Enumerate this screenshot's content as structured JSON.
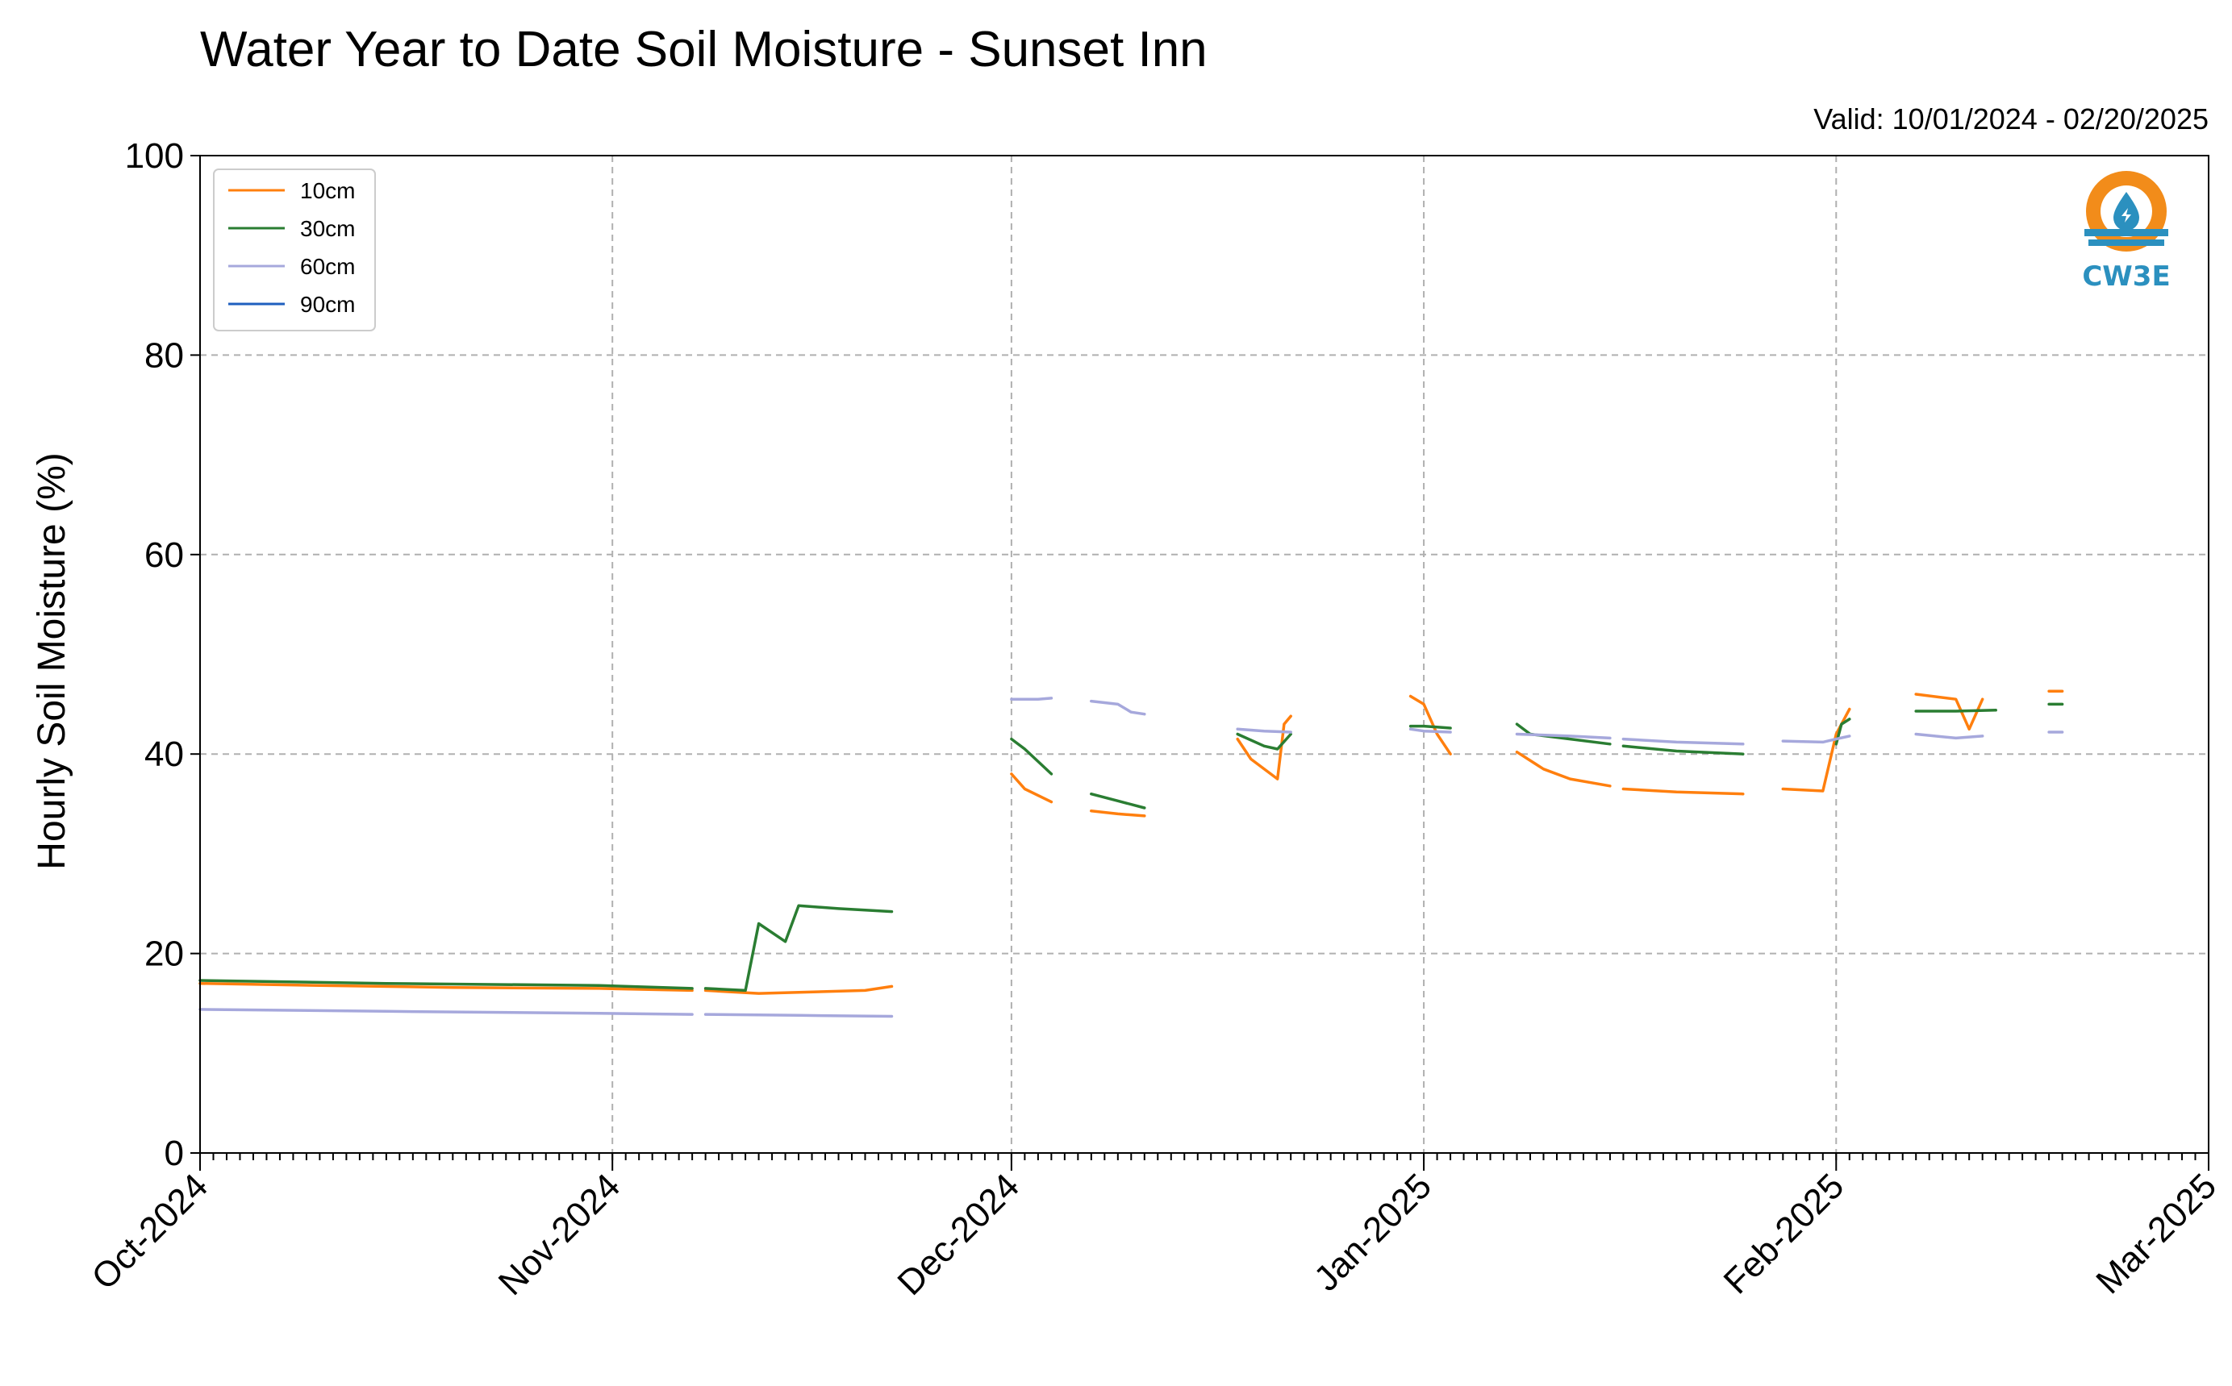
{
  "chart_data": {
    "type": "line",
    "title": "Water Year to Date Soil Moisture - Sunset Inn",
    "subtitle": "Valid: 10/01/2024 - 02/20/2025",
    "ylabel": "Hourly Soil Moisture (%)",
    "xlabel": "",
    "ylim": [
      0,
      100
    ],
    "yticks": [
      0,
      20,
      40,
      60,
      80,
      100
    ],
    "xlim": [
      "2024-10-01",
      "2025-03-01"
    ],
    "xticks": [
      {
        "date": "2024-10-01",
        "label": "Oct-2024"
      },
      {
        "date": "2024-11-01",
        "label": "Nov-2024"
      },
      {
        "date": "2024-12-01",
        "label": "Dec-2024"
      },
      {
        "date": "2025-01-01",
        "label": "Jan-2025"
      },
      {
        "date": "2025-02-01",
        "label": "Feb-2025"
      },
      {
        "date": "2025-03-01",
        "label": "Mar-2025"
      }
    ],
    "grid": true,
    "legend_position": "top-left",
    "series": [
      {
        "name": "10cm",
        "color": "#ff7f0e",
        "segments": [
          [
            [
              "2024-10-01",
              17.0
            ],
            [
              "2024-10-10",
              16.8
            ],
            [
              "2024-10-20",
              16.6
            ],
            [
              "2024-10-31",
              16.5
            ],
            [
              "2024-11-07",
              16.3
            ]
          ],
          [
            [
              "2024-11-08",
              16.3
            ],
            [
              "2024-11-12",
              16.0
            ],
            [
              "2024-11-15",
              16.1
            ],
            [
              "2024-11-20",
              16.3
            ],
            [
              "2024-11-22",
              16.7
            ]
          ],
          [
            [
              "2024-12-01",
              38.0
            ],
            [
              "2024-12-02",
              36.5
            ],
            [
              "2024-12-04",
              35.2
            ]
          ],
          [
            [
              "2024-12-07",
              34.3
            ],
            [
              "2024-12-09",
              34.0
            ],
            [
              "2024-12-11",
              33.8
            ]
          ],
          [
            [
              "2024-12-18",
              41.5
            ],
            [
              "2024-12-19",
              39.5
            ],
            [
              "2024-12-21",
              37.5
            ],
            [
              "2024-12-21.5",
              43.0
            ],
            [
              "2024-12-22",
              43.8
            ]
          ],
          [
            [
              "2024-12-31",
              45.8
            ],
            [
              "2025-01-01",
              45.0
            ],
            [
              "2025-01-02",
              42.0
            ],
            [
              "2025-01-03",
              40.0
            ]
          ],
          [
            [
              "2025-01-08",
              40.2
            ],
            [
              "2025-01-10",
              38.5
            ],
            [
              "2025-01-12",
              37.5
            ],
            [
              "2025-01-15",
              36.8
            ]
          ],
          [
            [
              "2025-01-16",
              36.5
            ],
            [
              "2025-01-20",
              36.2
            ],
            [
              "2025-01-25",
              36.0
            ]
          ],
          [
            [
              "2025-01-28",
              36.5
            ],
            [
              "2025-01-31",
              36.3
            ],
            [
              "2025-02-01",
              42.0
            ],
            [
              "2025-02-02",
              44.5
            ]
          ],
          [
            [
              "2025-02-07",
              46.0
            ],
            [
              "2025-02-10",
              45.5
            ],
            [
              "2025-02-11",
              42.5
            ],
            [
              "2025-02-12",
              45.5
            ]
          ],
          [
            [
              "2025-02-17",
              46.3
            ],
            [
              "2025-02-18",
              46.3
            ]
          ]
        ]
      },
      {
        "name": "30cm",
        "color": "#2a7d32",
        "segments": [
          [
            [
              "2024-10-01",
              17.3
            ],
            [
              "2024-10-15",
              17.0
            ],
            [
              "2024-10-31",
              16.8
            ],
            [
              "2024-11-07",
              16.5
            ]
          ],
          [
            [
              "2024-11-08",
              16.5
            ],
            [
              "2024-11-11",
              16.3
            ],
            [
              "2024-11-12",
              23.0
            ],
            [
              "2024-11-14",
              21.2
            ],
            [
              "2024-11-15",
              24.8
            ],
            [
              "2024-11-18",
              24.5
            ],
            [
              "2024-11-22",
              24.2
            ]
          ],
          [
            [
              "2024-12-01",
              41.5
            ],
            [
              "2024-12-02",
              40.5
            ],
            [
              "2024-12-04",
              38.0
            ]
          ],
          [
            [
              "2024-12-07",
              36.0
            ],
            [
              "2024-12-09",
              35.3
            ],
            [
              "2024-12-11",
              34.6
            ]
          ],
          [
            [
              "2024-12-18",
              42.0
            ],
            [
              "2024-12-20",
              40.8
            ],
            [
              "2024-12-21",
              40.5
            ],
            [
              "2024-12-22",
              42.0
            ]
          ],
          [
            [
              "2024-12-31",
              42.8
            ],
            [
              "2025-01-01",
              42.8
            ],
            [
              "2025-01-03",
              42.6
            ]
          ],
          [
            [
              "2025-01-08",
              43.0
            ],
            [
              "2025-01-09",
              42.0
            ],
            [
              "2025-01-12",
              41.5
            ],
            [
              "2025-01-15",
              41.0
            ]
          ],
          [
            [
              "2025-01-16",
              40.8
            ],
            [
              "2025-01-20",
              40.3
            ],
            [
              "2025-01-25",
              40.0
            ]
          ],
          [
            [
              "2025-02-01",
              41.0
            ],
            [
              "2025-02-01.4",
              43.0
            ],
            [
              "2025-02-02",
              43.5
            ]
          ],
          [
            [
              "2025-02-07",
              44.3
            ],
            [
              "2025-02-10",
              44.3
            ],
            [
              "2025-02-13",
              44.4
            ]
          ],
          [
            [
              "2025-02-17",
              45.0
            ],
            [
              "2025-02-18",
              45.0
            ]
          ]
        ]
      },
      {
        "name": "60cm",
        "color": "#a6a8dc",
        "segments": [
          [
            [
              "2024-10-01",
              14.4
            ],
            [
              "2024-10-15",
              14.2
            ],
            [
              "2024-10-31",
              14.0
            ],
            [
              "2024-11-07",
              13.9
            ]
          ],
          [
            [
              "2024-11-08",
              13.9
            ],
            [
              "2024-11-15",
              13.8
            ],
            [
              "2024-11-22",
              13.7
            ]
          ],
          [
            [
              "2024-12-01",
              45.5
            ],
            [
              "2024-12-03",
              45.5
            ],
            [
              "2024-12-04",
              45.6
            ]
          ],
          [
            [
              "2024-12-07",
              45.3
            ],
            [
              "2024-12-09",
              45.0
            ],
            [
              "2024-12-10",
              44.2
            ],
            [
              "2024-12-11",
              44.0
            ]
          ],
          [
            [
              "2024-12-18",
              42.5
            ],
            [
              "2024-12-20",
              42.3
            ],
            [
              "2024-12-22",
              42.2
            ]
          ],
          [
            [
              "2024-12-31",
              42.5
            ],
            [
              "2025-01-01",
              42.3
            ],
            [
              "2025-01-03",
              42.2
            ]
          ],
          [
            [
              "2025-01-08",
              42.0
            ],
            [
              "2025-01-12",
              41.8
            ],
            [
              "2025-01-15",
              41.6
            ]
          ],
          [
            [
              "2025-01-16",
              41.5
            ],
            [
              "2025-01-20",
              41.2
            ],
            [
              "2025-01-25",
              41.0
            ]
          ],
          [
            [
              "2025-01-28",
              41.3
            ],
            [
              "2025-01-31",
              41.2
            ],
            [
              "2025-02-01",
              41.5
            ],
            [
              "2025-02-02",
              41.8
            ]
          ],
          [
            [
              "2025-02-07",
              42.0
            ],
            [
              "2025-02-10",
              41.6
            ],
            [
              "2025-02-12",
              41.8
            ]
          ],
          [
            [
              "2025-02-17",
              42.2
            ],
            [
              "2025-02-18",
              42.2
            ]
          ]
        ]
      },
      {
        "name": "90cm",
        "color": "#1f5fbf",
        "segments": []
      }
    ]
  },
  "logo": {
    "text": "CW3E",
    "color": "#2b90bf",
    "accent": "#f28c1a"
  }
}
